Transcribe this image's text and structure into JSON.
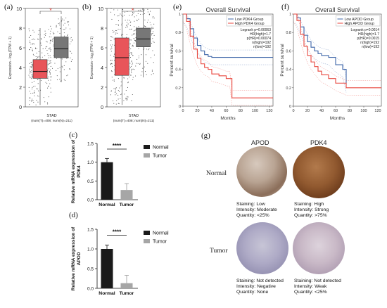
{
  "panel_labels": {
    "a": "(a)",
    "b": "(b)",
    "c": "(c)",
    "d": "(d)",
    "e": "(e)",
    "f": "(f)",
    "g": "(g)"
  },
  "colors": {
    "tumor": "#e8555a",
    "normal": "#777777",
    "km_low": "#3c64a8",
    "km_high": "#e8453c",
    "bar_normal": "#1a1a1a",
    "bar_tumor": "#a6a6a6"
  },
  "boxplots": {
    "ylabel": "Expression - log₂(TPM + 1)",
    "star": "*",
    "xlabel": "STAD",
    "sub": "(num(T)=408; num(N)=211)"
  },
  "bars": {
    "sig": "****",
    "legend": [
      "Normal",
      "Tumor"
    ],
    "xcats": [
      "Normal",
      "Tumor"
    ],
    "c_ylabel": [
      "Relative mRNA expression of",
      "PDK4"
    ],
    "d_ylabel": [
      "Relative mRNA expression of",
      "APOD"
    ]
  },
  "km": {
    "title": "Overall Survival",
    "ylabel": "Percent survival",
    "xlabel": "Months",
    "e_legend": [
      "Low PDK4 Group",
      "High PDK4 Group"
    ],
    "e_stats": [
      "Logrank p=0.00063",
      "HR(high)=1.7",
      "p(HR)=0.00074",
      "n(high)=192",
      "n(low)=192"
    ],
    "f_legend": [
      "Low APOD Group",
      "High APOD Group"
    ],
    "f_stats": [
      "Logrank p=0.0014",
      "HR(high)=1.7",
      "p(HR)=0.0015",
      "n(high)=192",
      "n(low)=192"
    ]
  },
  "ihc": {
    "cols": [
      "APOD",
      "PDK4"
    ],
    "rows": [
      "Normal",
      "Tumor"
    ],
    "normal_apod": [
      "Staining: Low",
      "Intensity: Moderate",
      "Quantity: <25%"
    ],
    "normal_pdk4": [
      "Staining: High",
      "Intensity: Strong",
      "Quantity: >75%"
    ],
    "tumor_apod": [
      "Staining: Not detected",
      "Intensity: Negative",
      "Quantity: None"
    ],
    "tumor_pdk4": [
      "Staining: Not detected",
      "Intensity: Weak",
      "Quantity: <25%"
    ]
  },
  "chart_data": [
    {
      "type": "box",
      "panel": "a",
      "ylim": [
        0,
        10
      ],
      "yticks": [
        0,
        2,
        4,
        6,
        8,
        10
      ],
      "series": [
        {
          "name": "T",
          "q1": 2.9,
          "median": 3.6,
          "q3": 4.8,
          "whisker_low": 0.2,
          "whisker_high": 8.0
        },
        {
          "name": "N",
          "q1": 5.0,
          "median": 5.9,
          "q3": 7.1,
          "whisker_low": 2.5,
          "whisker_high": 9.2
        }
      ]
    },
    {
      "type": "box",
      "panel": "b",
      "ylim": [
        0,
        10
      ],
      "yticks": [
        0,
        2,
        4,
        6,
        8,
        10
      ],
      "series": [
        {
          "name": "T",
          "q1": 3.2,
          "median": 5.0,
          "q3": 7.0,
          "whisker_low": 0.2,
          "whisker_high": 10.0
        },
        {
          "name": "N",
          "q1": 6.1,
          "median": 6.9,
          "q3": 8.0,
          "whisker_low": 3.0,
          "whisker_high": 10.0
        }
      ]
    },
    {
      "type": "bar",
      "panel": "c",
      "categories": [
        "Normal",
        "Tumor"
      ],
      "values": [
        1.0,
        0.26
      ],
      "errors": [
        0.1,
        0.17
      ],
      "ylim": [
        0,
        1.5
      ],
      "yticks": [
        0.0,
        0.5,
        1.0,
        1.5
      ]
    },
    {
      "type": "bar",
      "panel": "d",
      "categories": [
        "Normal",
        "Tumor"
      ],
      "values": [
        1.0,
        0.13
      ],
      "errors": [
        0.1,
        0.2
      ],
      "ylim": [
        0,
        1.5
      ],
      "yticks": [
        "0.0",
        "0.5",
        "1.0",
        "1.5"
      ]
    },
    {
      "type": "line",
      "panel": "e",
      "xlim": [
        0,
        125
      ],
      "ylim": [
        0,
        1
      ],
      "xticks": [
        0,
        20,
        40,
        60,
        80,
        100,
        120
      ],
      "yticks": [
        0,
        0.2,
        0.4,
        0.6,
        0.8,
        1.0
      ],
      "series": [
        {
          "name": "Low PDK4 Group",
          "x": [
            0,
            5,
            10,
            15,
            20,
            25,
            30,
            35,
            40,
            50,
            60,
            80,
            100,
            120,
            125
          ],
          "y": [
            1,
            0.95,
            0.84,
            0.74,
            0.66,
            0.6,
            0.56,
            0.54,
            0.53,
            0.53,
            0.53,
            0.53,
            0.53,
            0.53,
            0.53
          ]
        },
        {
          "name": "High PDK4 Group",
          "x": [
            0,
            5,
            10,
            15,
            20,
            25,
            30,
            35,
            40,
            50,
            60,
            65,
            68,
            120,
            125
          ],
          "y": [
            1,
            0.92,
            0.76,
            0.62,
            0.52,
            0.46,
            0.42,
            0.4,
            0.35,
            0.33,
            0.3,
            0.3,
            0.09,
            0.09,
            0.09
          ]
        }
      ]
    },
    {
      "type": "line",
      "panel": "f",
      "xlim": [
        0,
        125
      ],
      "ylim": [
        0,
        1
      ],
      "xticks": [
        0,
        20,
        40,
        60,
        80,
        100,
        120
      ],
      "yticks": [
        0,
        0.2,
        0.4,
        0.6,
        0.8,
        1.0
      ],
      "series": [
        {
          "name": "Low APOD Group",
          "x": [
            0,
            5,
            10,
            15,
            20,
            25,
            30,
            35,
            40,
            50,
            60,
            70,
            75
          ],
          "y": [
            1,
            0.96,
            0.86,
            0.77,
            0.7,
            0.64,
            0.6,
            0.57,
            0.55,
            0.53,
            0.45,
            0.4,
            0.23
          ]
        },
        {
          "name": "High APOD Group",
          "x": [
            0,
            5,
            10,
            15,
            20,
            25,
            30,
            35,
            40,
            50,
            60,
            75,
            120,
            125
          ],
          "y": [
            1,
            0.93,
            0.78,
            0.65,
            0.55,
            0.48,
            0.43,
            0.38,
            0.34,
            0.3,
            0.25,
            0.2,
            0.2,
            0.2
          ]
        }
      ]
    }
  ]
}
